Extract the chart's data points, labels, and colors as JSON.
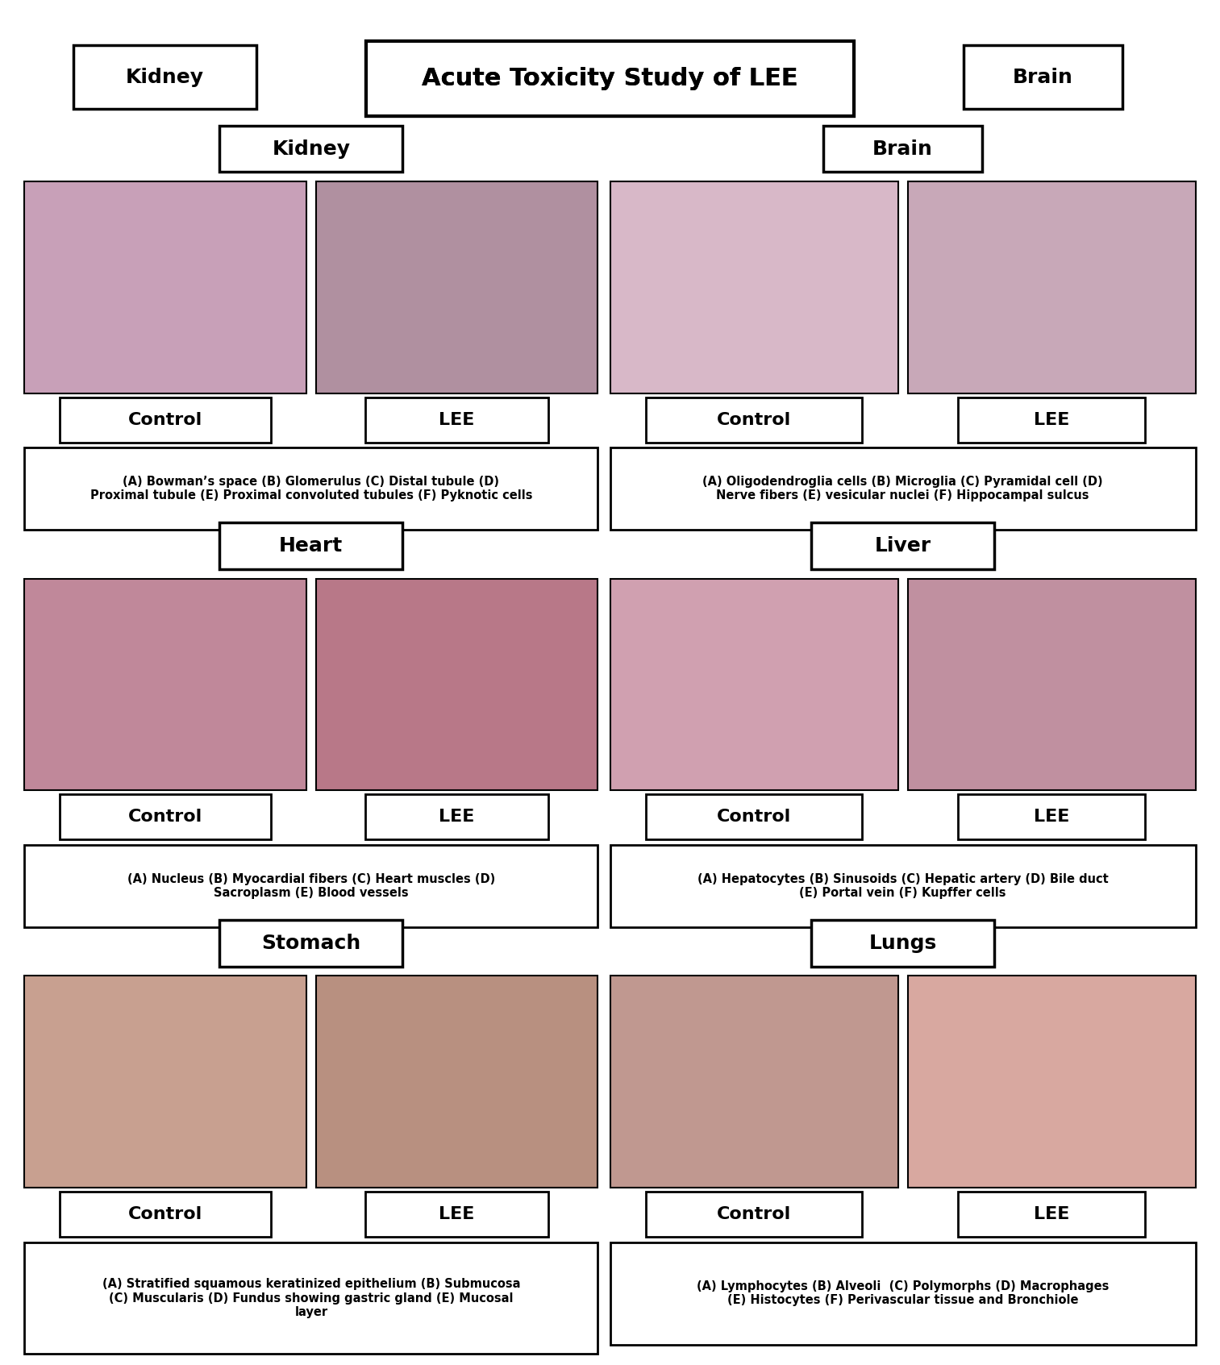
{
  "title": "Acute Toxicity Study of LEE",
  "organs": [
    "Kidney",
    "Brain",
    "Heart",
    "Liver",
    "Stomach",
    "Lungs"
  ],
  "organ_positions": {
    "Kidney": {
      "col": 0,
      "row": 0
    },
    "Brain": {
      "col": 1,
      "row": 0
    },
    "Heart": {
      "col": 0,
      "row": 1
    },
    "Liver": {
      "col": 1,
      "row": 1
    },
    "Stomach": {
      "col": 0,
      "row": 2
    },
    "Lungs": {
      "col": 1,
      "row": 2
    }
  },
  "descriptions": {
    "Kidney": "(A) Bowman’s space (B) Glomerulus (C) Distal tubule (D)\nProximal tubule (E) Proximal convoluted tubules (F) Pyknotic cells",
    "Brain": "(A) Oligodendroglia cells (B) Microglia (C) Pyramidal cell (D)\nNerve fibers (E) vesicular nuclei (F) Hippocampal sulcus",
    "Heart": "(A) Nucleus (B) Myocardial fibers (C) Heart muscles (D)\nSacroplasm (E) Blood vessels",
    "Liver": "(A) Hepatocytes (B) Sinusoids (C) Hepatic artery (D) Bile duct\n(E) Portal vein (F) Kupffer cells",
    "Stomach": "(A) Stratified squamous keratinized epithelium (B) Submucosa\n(C) Muscularis (D) Fundus showing gastric gland (E) Mucosal\nlayer",
    "Lungs": "(A) Lymphocytes (B) Alveoli  (C) Polymorphs (D) Macrophages\n(E) Histocytes (F) Perivascular tissue and Bronchiole"
  },
  "image_colors": {
    "Kidney_control": "#c8a0b8",
    "Kidney_lee": "#b090a0",
    "Brain_control": "#d8b8c8",
    "Brain_lee": "#c8a8b8",
    "Heart_control": "#c0889a",
    "Heart_lee": "#b87888",
    "Liver_control": "#d0a0b0",
    "Liver_lee": "#c090a0",
    "Stomach_control": "#c8a090",
    "Stomach_lee": "#b89080",
    "Lungs_control": "#c09890",
    "Lungs_lee": "#d8a8a0"
  },
  "bg_color": "#f0f0f0",
  "box_bg": "#ffffff",
  "border_color": "#000000",
  "text_color": "#000000",
  "title_fontsize": 22,
  "organ_fontsize": 18,
  "label_fontsize": 13,
  "desc_fontsize": 10.5,
  "control_lee_fontsize": 16
}
